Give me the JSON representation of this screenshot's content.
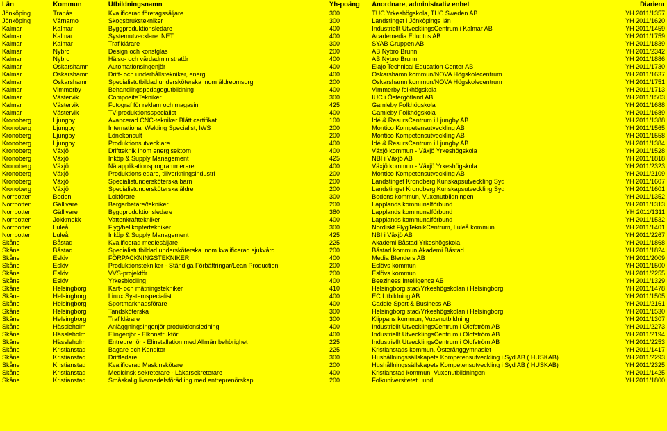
{
  "headers": {
    "lan": "Län",
    "kommun": "Kommun",
    "utbildningsnamn": "Utbildningsnamn",
    "poang": "Yh-poäng",
    "anordnare": "Anordnare, administrativ enhet",
    "diarienr": "Diarienr"
  },
  "rows": [
    [
      "Jönköping",
      "Tranås",
      "Kvalificerad företagssäljare",
      "300",
      "TUC Yrkeshögskola, TUC Sweden AB",
      "YH 2011/1357"
    ],
    [
      "Jönköping",
      "Värnamo",
      "Skogsbrukstekniker",
      "300",
      "Landstinget i Jönköpings län",
      "YH 2011/1620"
    ],
    [
      "Kalmar",
      "Kalmar",
      "Byggproduktionsledare",
      "400",
      "Industriellt UtvecklingsCentrum i Kalmar AB",
      "YH 2011/1459"
    ],
    [
      "Kalmar",
      "Kalmar",
      "Systemutvecklare .NET",
      "400",
      "Academedia Eductus AB",
      "YH 2011/1759"
    ],
    [
      "Kalmar",
      "Kalmar",
      "Trafiklärare",
      "300",
      "SYAB Gruppen AB",
      "YH 2011/1839"
    ],
    [
      "Kalmar",
      "Nybro",
      "Design och konstglas",
      "200",
      "AB Nybro Brunn",
      "YH 2011/2342"
    ],
    [
      "Kalmar",
      "Nybro",
      "Hälso- och vårdadministratör",
      "400",
      "AB Nybro Brunn",
      "YH 2011/1886"
    ],
    [
      "Kalmar",
      "Oskarshamn",
      "Automationsingenjör",
      "400",
      "Elajo Technical Education Center AB",
      "YH 2011/1730"
    ],
    [
      "Kalmar",
      "Oskarshamn",
      "Drift- och underhållstekniker, energi",
      "400",
      "Oskarshamn kommun/NOVA Högskolecentrum",
      "YH 2011/1637"
    ],
    [
      "Kalmar",
      "Oskarshamn",
      "Specialistutbildad undersköterska inom äldreomsorg",
      "200",
      "Oskarshamn kommun/NOVA Högskolecentrum",
      "YH 2011/1751"
    ],
    [
      "Kalmar",
      "Vimmerby",
      "Behandlingspedagogutbildning",
      "400",
      "Vimmerby folkhögskola",
      "YH 2011/1713"
    ],
    [
      "Kalmar",
      "Västervik",
      "CompositeTekniker",
      "300",
      "IUC i Östergötland AB",
      "YH 2011/1503"
    ],
    [
      "Kalmar",
      "Västervik",
      "Fotograf för reklam och magasin",
      "425",
      "Gamleby Folkhögskola",
      "YH 2011/1688"
    ],
    [
      "Kalmar",
      "Västervik",
      "TV-produktionsspecialist",
      "400",
      "Gamleby Folkhögskola",
      "YH 2011/1689"
    ],
    [
      "Kronoberg",
      "Ljungby",
      "Avancerad CNC-tekniker Blått certifikat",
      "100",
      "Idé & ResursCentrum i Ljungby AB",
      "YH 2011/1388"
    ],
    [
      "Kronoberg",
      "Ljungby",
      "International Welding Specialist, IWS",
      "200",
      "Montico Kompetensutveckling AB",
      "YH 2011/1565"
    ],
    [
      "Kronoberg",
      "Ljungby",
      "Lönekonsult",
      "200",
      "Montico Kompetensutveckling AB",
      "YH 2011/1558"
    ],
    [
      "Kronoberg",
      "Ljungby",
      "Produktionsutvecklare",
      "400",
      "Idé & ResursCentrum i Ljungby AB",
      "YH 2011/1384"
    ],
    [
      "Kronoberg",
      "Växjö",
      "Driftteknik inom energisektorn",
      "400",
      "Växjö kommun - Växjö Yrkeshögskola",
      "YH 2011/1528"
    ],
    [
      "Kronoberg",
      "Växjö",
      "Inköp & Supply Management",
      "425",
      "NBI i Växjö AB",
      "YH 2011/1818"
    ],
    [
      "Kronoberg",
      "Växjö",
      "Nätapplikationsprogrammerare",
      "400",
      "Växjö kommun - Växjö Yrkeshögskola",
      "YH 2011/2323"
    ],
    [
      "Kronoberg",
      "Växjö",
      "Produktionsledare, tillverkningsindustri",
      "200",
      "Montico Kompetensutveckling AB",
      "YH 2011/2109"
    ],
    [
      "Kronoberg",
      "Växjö",
      "Specialistundersköterska barn",
      "200",
      "Landstinget Kronoberg Kunskapsutveckling Syd",
      "YH 2011/1607"
    ],
    [
      "Kronoberg",
      "Växjö",
      "Specialistundersköterska äldre",
      "200",
      "Landstinget Kronoberg Kunskapsutveckling Syd",
      "YH 2011/1601"
    ],
    [
      "Norrbotten",
      "Boden",
      "Lokförare",
      "300",
      "Bodens kommun, Vuxenutbildningen",
      "YH 2011/1352"
    ],
    [
      "Norrbotten",
      "Gällivare",
      "Bergarbetare/tekniker",
      "200",
      "Lapplands kommunalförbund",
      "YH 2011/1313"
    ],
    [
      "Norrbotten",
      "Gällivare",
      "Byggproduktionsledare",
      "380",
      "Lapplands kommunalförbund",
      "YH 2011/1311"
    ],
    [
      "Norrbotten",
      "Jokkmokk",
      "Vattenkrafttekniker",
      "400",
      "Lapplands kommunalförbund",
      "YH 2011/1532"
    ],
    [
      "Norrbotten",
      "Luleå",
      "Flyg/helikoptertekniker",
      "300",
      "Nordiskt FlygTeknikCentrum, Luleå kommun",
      "YH 2011/1401"
    ],
    [
      "Norrbotten",
      "Luleå",
      "Inköp & Supply Management",
      "425",
      "NBI i Växjö AB",
      "YH 2011/2267"
    ],
    [
      "Skåne",
      "Båstad",
      "Kvalificerad mediesäljare",
      "225",
      "Akademi Båstad Yrkeshögskola",
      "YH 2011/1868"
    ],
    [
      "Skåne",
      "Båstad",
      "Specialistutbildad undersköterska inom kvalificerad sjukvård",
      "200",
      "Båstad kommun Akademi Båstad",
      "YH 2011/1824"
    ],
    [
      "Skåne",
      "Eslöv",
      "FÖRPACKNINGSTEKNIKER",
      "400",
      "Media Blenders AB",
      "YH 2011/2009"
    ],
    [
      "Skåne",
      "Eslöv",
      "Produktionstekniker - Ständiga Förbättringar/Lean Production",
      "200",
      "Eslövs kommun",
      "YH 2011/1500"
    ],
    [
      "Skåne",
      "Eslöv",
      "VVS-projektör",
      "200",
      "Eslövs kommun",
      "YH 2011/2255"
    ],
    [
      "Skåne",
      "Eslöv",
      "Yrkesbiodling",
      "400",
      "Beeziness Intelligence AB",
      "YH 2011/1329"
    ],
    [
      "Skåne",
      "Helsingborg",
      "Kart- och mätningstekniker",
      "410",
      "Helsingborg stad/Yrkeshögskolan i Helsingborg",
      "YH 2011/1478"
    ],
    [
      "Skåne",
      "Helsingborg",
      "Linux Systemspecialist",
      "400",
      "EC Utbildning AB",
      "YH 2011/1505"
    ],
    [
      "Skåne",
      "Helsingborg",
      "Sportmarknadsförare",
      "400",
      "Caddie Sport & Business AB",
      "YH 2011/2161"
    ],
    [
      "Skåne",
      "Helsingborg",
      "Tandsköterska",
      "300",
      "Helsingborg stad/Yrkeshögskolan i Helsingborg",
      "YH 2011/1530"
    ],
    [
      "Skåne",
      "Helsingborg",
      "Trafiklärare",
      "300",
      "Klippans kommun, Vuxenutbildning",
      "YH 2011/1307"
    ],
    [
      "Skåne",
      "Hässleholm",
      "Anläggningsingenjör produktionsledning",
      "400",
      "Industriellt UtvecklingsCentrum i Olofström AB",
      "YH 2011/2273"
    ],
    [
      "Skåne",
      "Hässleholm",
      "Elingenjör - Elkonstruktör",
      "400",
      "Industriellt UtvecklingsCentrum i Olofström AB",
      "YH 2011/2194"
    ],
    [
      "Skåne",
      "Hässleholm",
      "Entreprenör - Elinstallation med Allmän behörighet",
      "225",
      "Industriellt UtvecklingsCentrum i Olofström AB",
      "YH 2011/2253"
    ],
    [
      "Skåne",
      "Kristianstad",
      "Bagare och Konditor",
      "225",
      "Kristianstads kommun, Österänggymnasiet",
      "YH 2011/1417"
    ],
    [
      "Skåne",
      "Kristianstad",
      "Driftledare",
      "300",
      "Hushållningssällskapets Kompetensutveckling i Syd AB ( HUSKAB)",
      "YH 2011/2293"
    ],
    [
      "Skåne",
      "Kristianstad",
      "Kvalificerad Maskinskötare",
      "200",
      "Hushållningssällskapets Kompetensutveckling i Syd AB ( HUSKAB)",
      "YH 2011/2325"
    ],
    [
      "Skåne",
      "Kristianstad",
      "Medicinsk sekreterare - Läkarsekreterare",
      "400",
      "Kristianstad kommun, Vuxenutbildningen",
      "YH 2011/1425"
    ],
    [
      "Skåne",
      "Kristianstad",
      "Småskalig livsmedelsförädling med entreprenörskap",
      "200",
      "Folkuniversitetet Lund",
      "YH 2011/1800"
    ]
  ],
  "style": {
    "background": "#ffff00",
    "fontsize": 9,
    "header_fontsize": 9.5,
    "header_fontweight": "bold",
    "col_widths": {
      "lan": 60,
      "kommun": 65,
      "utb": 260,
      "poang": 50,
      "anordnare": 270,
      "diarienr": 75
    }
  }
}
